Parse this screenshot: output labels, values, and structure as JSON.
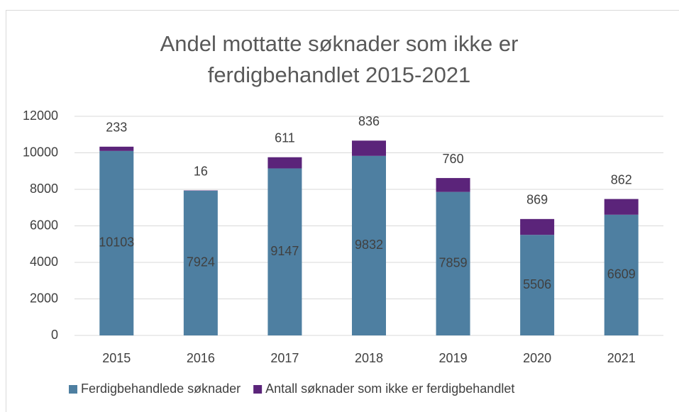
{
  "chart_data": {
    "type": "stacked-bar",
    "title": "Andel mottatte søknader som ikke er ferdigbehandlet 2015-2021",
    "categories": [
      "2015",
      "2016",
      "2017",
      "2018",
      "2019",
      "2020",
      "2021"
    ],
    "series": [
      {
        "name": "Ferdigbehandlede søknader",
        "color": "#4e7fa1",
        "values": [
          10103,
          7924,
          9147,
          9832,
          7859,
          5506,
          6609
        ]
      },
      {
        "name": "Antall søknader som ikke er ferdigbehandlet",
        "color": "#5b247a",
        "values": [
          233,
          16,
          611,
          836,
          760,
          869,
          862
        ]
      }
    ],
    "ylim": [
      0,
      12000
    ],
    "yticks": [
      0,
      2000,
      4000,
      6000,
      8000,
      10000,
      12000
    ],
    "grid": true,
    "legend": "bottom"
  }
}
